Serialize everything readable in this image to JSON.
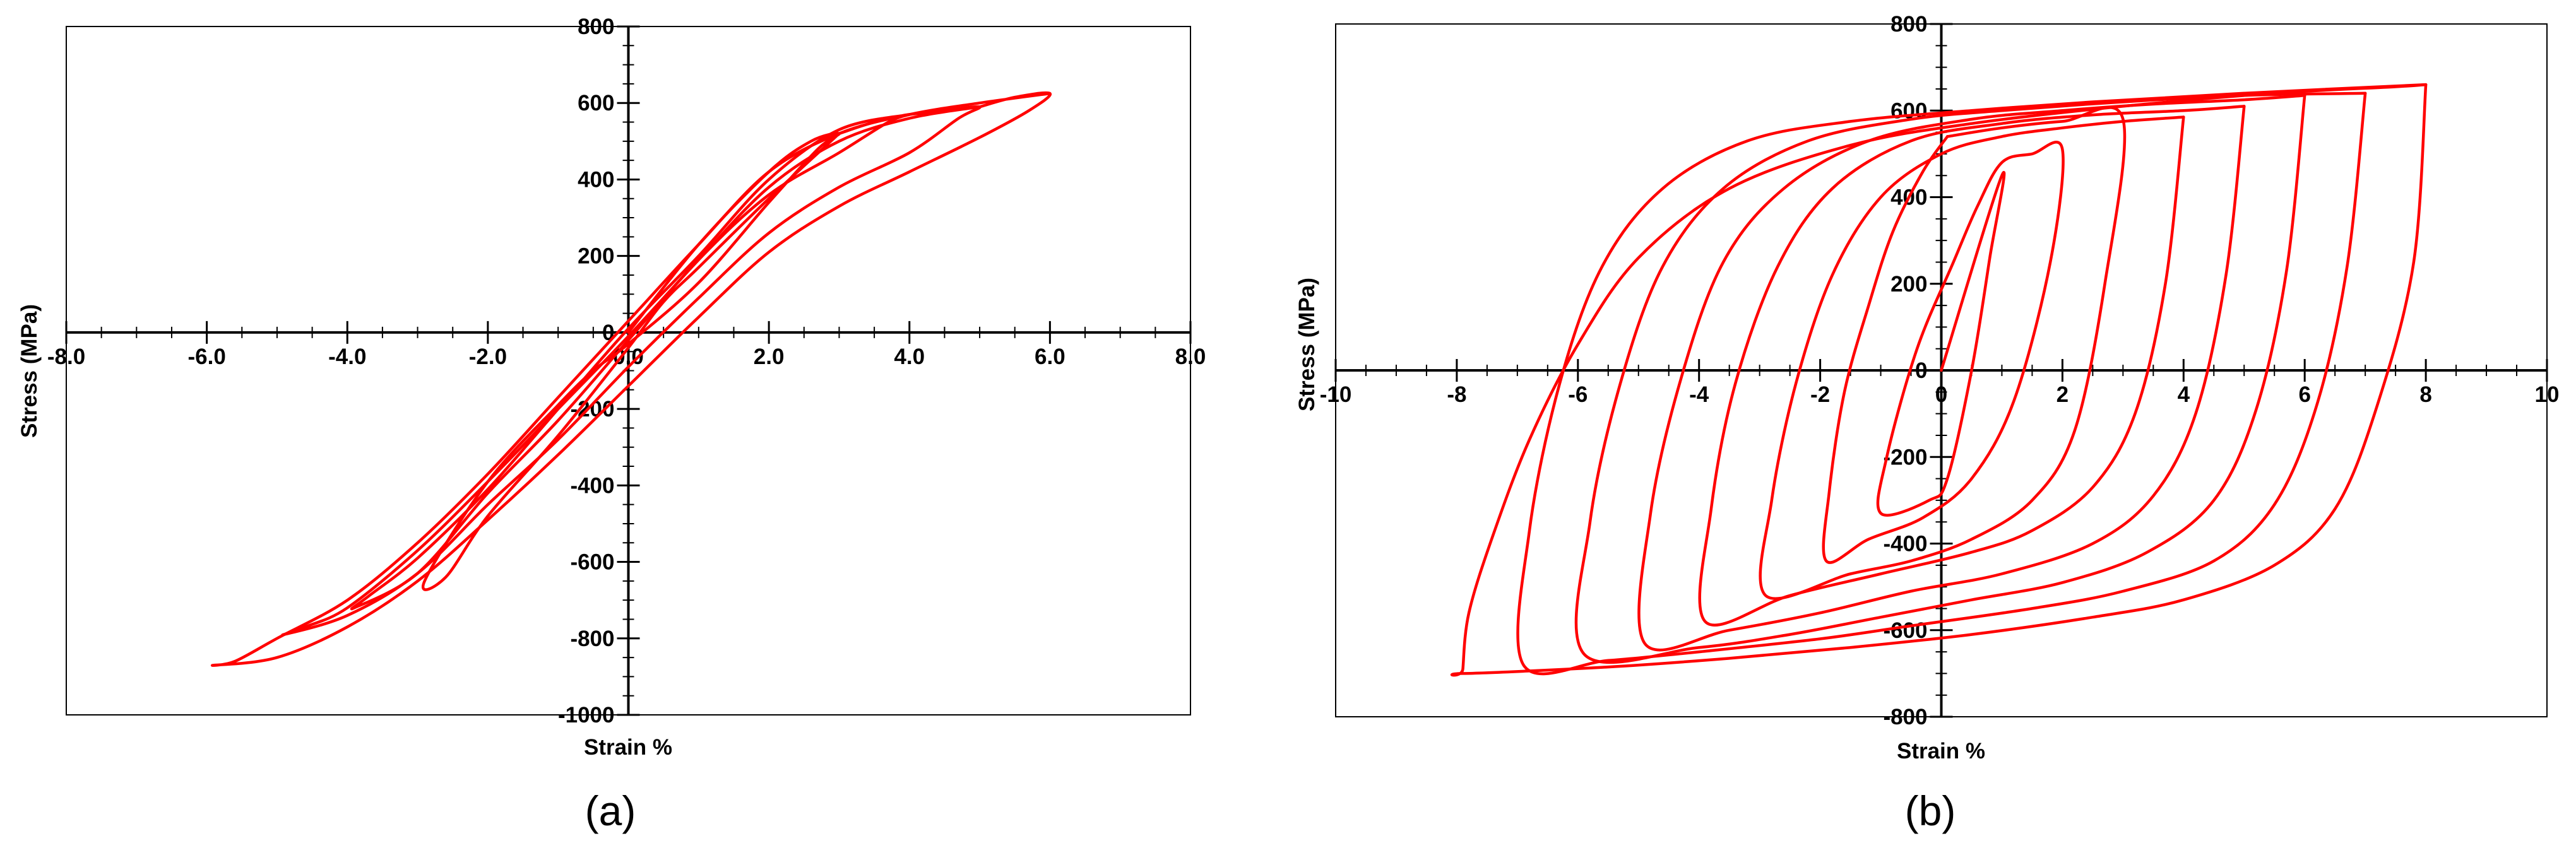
{
  "colors": {
    "curve": "#ff0000",
    "axis": "#000000",
    "frame": "#000000"
  },
  "chart_data": [
    {
      "type": "line",
      "panel_label": "(a)",
      "xlabel": "Strain %",
      "ylabel": "Stress (MPa)",
      "xlim": [
        -8,
        8
      ],
      "ylim": [
        -1000,
        800
      ],
      "x_ticks": [
        -8,
        -6,
        -4,
        -2,
        0,
        2,
        4,
        6,
        8
      ],
      "x_tick_labels": [
        "-8.0",
        "-6.0",
        "-4.0",
        "-2.0",
        "0.0",
        "2.0",
        "4.0",
        "6.0",
        "8.0"
      ],
      "y_ticks": [
        -1000,
        -800,
        -600,
        -400,
        -200,
        0,
        200,
        400,
        600,
        800
      ],
      "y_tick_labels": [
        "-1000",
        "-800",
        "-600",
        "-400",
        "-200",
        "0",
        "200",
        "400",
        "600",
        "800"
      ],
      "grid": false,
      "series": [
        {
          "x": [
            0,
            1.0,
            2.0,
            2.6,
            3.0,
            2.7,
            2.0,
            1.0,
            0,
            -0.5,
            -1.0,
            -2.0,
            -2.9,
            -2.6,
            -2.0,
            -1.0,
            0,
            0.5,
            1.0,
            2.0,
            3.0
          ],
          "y": [
            0,
            230,
            420,
            500,
            520,
            480,
            340,
            130,
            -30,
            -100,
            -190,
            -390,
            -650,
            -640,
            -480,
            -270,
            -40,
            80,
            170,
            350,
            520
          ]
        },
        {
          "x": [
            3.0,
            3.5,
            4.0,
            3.7,
            3.0,
            2.0,
            1.0,
            0,
            -1.0,
            -2.0,
            -3.0,
            -3.9,
            -3.7,
            -3.0,
            -2.0,
            -1.0,
            0,
            1.0,
            2.0,
            3.0,
            4.0
          ],
          "y": [
            520,
            550,
            570,
            550,
            470,
            360,
            190,
            -20,
            -230,
            -420,
            -630,
            -720,
            -690,
            -590,
            -410,
            -200,
            10,
            200,
            400,
            530,
            570
          ]
        },
        {
          "x": [
            4.0,
            4.5,
            5.0,
            4.7,
            4.0,
            3.0,
            2.0,
            1.0,
            0,
            -1.0,
            -2.0,
            -3.0,
            -4.0,
            -4.9,
            -4.6,
            -4.0,
            -3.0,
            -2.0,
            -1.0,
            0,
            1.0,
            2.0,
            3.0,
            4.0,
            5.0
          ],
          "y": [
            570,
            580,
            590,
            560,
            470,
            380,
            260,
            90,
            -90,
            -280,
            -450,
            -630,
            -740,
            -790,
            -770,
            -720,
            -570,
            -390,
            -200,
            -10,
            190,
            380,
            500,
            560,
            590
          ]
        },
        {
          "x": [
            5.0,
            5.5,
            6.0,
            5.7,
            5.0,
            4.0,
            3.0,
            2.0,
            1.0,
            0,
            -1.0,
            -2.0,
            -3.0,
            -4.0,
            -5.0,
            -5.9,
            -5.6,
            -5.0,
            -4.0,
            -3.0,
            -2.0,
            -1.0,
            0,
            1.0,
            2.0,
            3.0,
            4.0,
            5.0,
            6.0
          ],
          "y": [
            590,
            615,
            625,
            580,
            510,
            420,
            330,
            210,
            40,
            -140,
            -320,
            -490,
            -650,
            -770,
            -850,
            -870,
            -860,
            -800,
            -700,
            -550,
            -370,
            -170,
            30,
            230,
            420,
            520,
            570,
            600,
            625
          ]
        }
      ]
    },
    {
      "type": "line",
      "panel_label": "(b)",
      "xlabel": "Strain %",
      "ylabel": "Stress (MPa)",
      "xlim": [
        -10,
        10
      ],
      "ylim": [
        -800,
        800
      ],
      "x_ticks": [
        -10,
        -8,
        -6,
        -4,
        -2,
        0,
        2,
        4,
        6,
        8,
        10
      ],
      "x_tick_labels": [
        "-10",
        "-8",
        "-6",
        "-4",
        "-2",
        "0",
        "2",
        "4",
        "6",
        "8",
        "10"
      ],
      "y_ticks": [
        -800,
        -600,
        -400,
        -200,
        0,
        200,
        400,
        600,
        800
      ],
      "y_tick_labels": [
        "-800",
        "-600",
        "-400",
        "-200",
        "0",
        "200",
        "400",
        "600",
        "800"
      ],
      "grid": false,
      "series": [
        {
          "x": [
            0,
            1.0,
            0.8,
            0.5,
            0.1,
            -0.2,
            -1.0,
            -0.9,
            -0.4,
            0.2,
            0.6,
            1.0,
            1.5,
            2.0,
            1.8,
            1.2,
            0.5,
            -0.3,
            -1.2,
            -1.9,
            -1.85,
            -1.6,
            -1.2,
            -0.8,
            -0.3,
            0.1
          ],
          "y": [
            0,
            450,
            260,
            0,
            -250,
            -300,
            -330,
            -200,
            50,
            250,
            380,
            480,
            500,
            510,
            250,
            -70,
            -250,
            -340,
            -390,
            -440,
            -280,
            -50,
            150,
            320,
            460,
            540
          ]
        },
        {
          "x": [
            0.1,
            1.0,
            2.0,
            3.0,
            2.7,
            2.2,
            1.5,
            0.5,
            -0.5,
            -1.5,
            -2.9,
            -2.8,
            -2.4,
            -1.8,
            -1.0,
            0,
            1.0,
            2.0,
            3.0,
            4.0
          ],
          "y": [
            540,
            560,
            575,
            580,
            200,
            -140,
            -300,
            -390,
            -440,
            -470,
            -520,
            -300,
            -30,
            220,
            400,
            500,
            540,
            560,
            575,
            585
          ]
        },
        {
          "x": [
            4.0,
            3.7,
            3.2,
            2.5,
            1.5,
            0.5,
            -1.0,
            -2.5,
            -3.9,
            -3.8,
            -3.4,
            -2.7,
            -1.8,
            -0.5,
            1.0,
            2.5,
            4.0,
            5.0
          ],
          "y": [
            585,
            200,
            -100,
            -270,
            -370,
            -420,
            -470,
            -520,
            -580,
            -320,
            -30,
            240,
            420,
            530,
            570,
            590,
            600,
            610
          ]
        },
        {
          "x": [
            5.0,
            4.7,
            4.2,
            3.5,
            2.5,
            1.0,
            -0.5,
            -2.0,
            -3.5,
            -4.9,
            -4.8,
            -4.3,
            -3.6,
            -2.6,
            -1.2,
            0.5,
            2.0,
            3.5,
            5.0,
            6.0
          ],
          "y": [
            610,
            220,
            -100,
            -290,
            -400,
            -470,
            -510,
            -560,
            -600,
            -630,
            -330,
            -20,
            250,
            420,
            530,
            580,
            600,
            615,
            625,
            635
          ]
        },
        {
          "x": [
            6.0,
            5.7,
            5.2,
            4.5,
            3.4,
            2.0,
            0.5,
            -1.0,
            -2.5,
            -4.0,
            -5.9,
            -5.8,
            -5.3,
            -4.6,
            -3.6,
            -2.2,
            -0.5,
            1.0,
            3.0,
            5.0,
            7.0
          ],
          "y": [
            635,
            230,
            -90,
            -300,
            -420,
            -490,
            -530,
            -570,
            -610,
            -640,
            -655,
            -350,
            -30,
            240,
            420,
            530,
            580,
            600,
            620,
            635,
            640
          ]
        },
        {
          "x": [
            7.0,
            6.7,
            6.2,
            5.5,
            4.5,
            3.0,
            1.5,
            -0.5,
            -2.0,
            -4.0,
            -5.5,
            -6.9,
            -6.8,
            -6.3,
            -5.6,
            -4.6,
            -3.2,
            -1.5,
            0.5,
            2.5,
            5.0,
            8.0
          ],
          "y": [
            640,
            240,
            -80,
            -310,
            -440,
            -510,
            -550,
            -590,
            -620,
            -650,
            -670,
            -680,
            -370,
            -30,
            240,
            420,
            530,
            575,
            600,
            620,
            640,
            660
          ]
        },
        {
          "x": [
            8.0,
            7.8,
            7.2,
            6.5,
            5.5,
            4.0,
            2.5,
            0.5,
            -1.5,
            -3.5,
            -5.5,
            -7.9,
            -7.9,
            -7.8,
            -7.4,
            -6.8,
            -6.0,
            -5.0,
            -3.5,
            -1.5,
            0.5,
            3.0,
            5.5,
            7.5,
            8.0
          ],
          "y": [
            660,
            250,
            -80,
            -320,
            -450,
            -530,
            -570,
            -610,
            -640,
            -665,
            -685,
            -700,
            -690,
            -560,
            -380,
            -160,
            60,
            260,
            420,
            520,
            570,
            610,
            640,
            655,
            660
          ]
        }
      ]
    }
  ]
}
